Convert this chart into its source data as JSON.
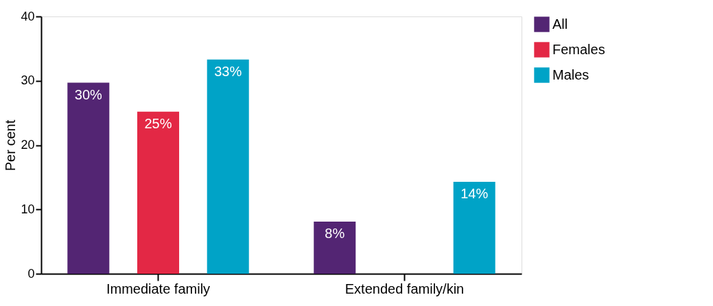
{
  "chart_data": {
    "type": "bar",
    "ylabel": "Per cent",
    "categories": [
      "Immediate family",
      "Extended family/kin"
    ],
    "series": [
      {
        "name": "All",
        "color": "#532573",
        "values": [
          29.7,
          8.1
        ],
        "value_labels": [
          "30%",
          "8%"
        ]
      },
      {
        "name": "Females",
        "color": "#e32845",
        "values": [
          25.2,
          null
        ],
        "value_labels": [
          "25%",
          null
        ]
      },
      {
        "name": "Males",
        "color": "#00a3c7",
        "values": [
          33.3,
          14.3
        ],
        "value_labels": [
          "33%",
          "14%"
        ]
      }
    ],
    "ylim": [
      0,
      40
    ],
    "yticks": [
      0,
      10,
      20,
      30,
      40
    ],
    "grid": false,
    "legend": "right"
  }
}
